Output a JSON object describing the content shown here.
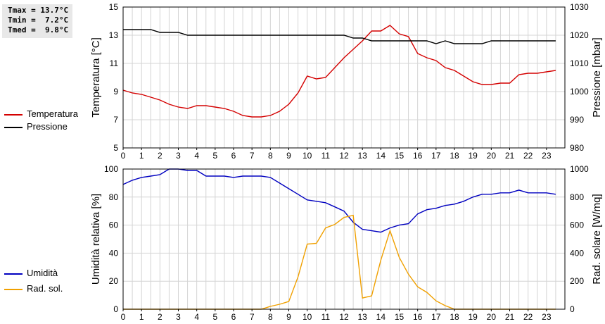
{
  "stats": {
    "lines": [
      "Tmax = 13.7°C",
      "Tmin =  7.2°C",
      "Tmed =  9.8°C"
    ]
  },
  "legend": {
    "top": [
      {
        "label": "Temperatura",
        "color": "#d40000"
      },
      {
        "label": "Pressione",
        "color": "#000000"
      }
    ],
    "bottom": [
      {
        "label": "Umidità",
        "color": "#0000c0"
      },
      {
        "label": "Rad. sol.",
        "color": "#f0a000"
      }
    ]
  },
  "chart_data": [
    {
      "type": "line",
      "x_ticks": [
        "0",
        "1",
        "2",
        "3",
        "4",
        "5",
        "6",
        "7",
        "8",
        "9",
        "10",
        "11",
        "12",
        "13",
        "14",
        "15",
        "16",
        "17",
        "18",
        "19",
        "20",
        "21",
        "22",
        "23"
      ],
      "xlim": [
        0,
        24
      ],
      "grid": true,
      "ylabel_left": "Temperatura [°C]",
      "ylabel_right": "Pressione [mbar]",
      "ylim_left": [
        5,
        15
      ],
      "ylim_right": [
        980,
        1030
      ],
      "yticks_left": [
        "5",
        "7",
        "9",
        "11",
        "13",
        "15"
      ],
      "yticks_right": [
        "980",
        "990",
        "1000",
        "1010",
        "1020",
        "1030"
      ],
      "series": [
        {
          "name": "Temperatura",
          "axis": "left",
          "color": "#d40000",
          "x": [
            0,
            0.5,
            1,
            1.5,
            2,
            2.5,
            3,
            3.5,
            4,
            4.5,
            5,
            5.5,
            6,
            6.5,
            7,
            7.5,
            8,
            8.5,
            9,
            9.5,
            10,
            10.5,
            11,
            11.5,
            12,
            12.5,
            13,
            13.5,
            14,
            14.5,
            15,
            15.5,
            16,
            16.5,
            17,
            17.5,
            18,
            18.5,
            19,
            19.5,
            20,
            20.5,
            21,
            21.5,
            22,
            22.5,
            23,
            23.5
          ],
          "y": [
            9.1,
            8.9,
            8.8,
            8.6,
            8.4,
            8.1,
            7.9,
            7.8,
            8.0,
            8.0,
            7.9,
            7.8,
            7.6,
            7.3,
            7.2,
            7.2,
            7.3,
            7.6,
            8.1,
            8.9,
            10.1,
            9.9,
            10.0,
            10.7,
            11.4,
            12.0,
            12.6,
            13.3,
            13.3,
            13.7,
            13.1,
            12.9,
            11.7,
            11.4,
            11.2,
            10.7,
            10.5,
            10.1,
            9.7,
            9.5,
            9.5,
            9.6,
            9.6,
            10.2,
            10.3,
            10.3,
            10.4,
            10.5
          ]
        },
        {
          "name": "Pressione",
          "axis": "right",
          "color": "#000000",
          "x": [
            0,
            0.5,
            1,
            1.5,
            2,
            2.5,
            3,
            3.5,
            4,
            4.5,
            5,
            5.5,
            6,
            6.5,
            7,
            7.5,
            8,
            8.5,
            9,
            9.5,
            10,
            10.5,
            11,
            11.5,
            12,
            12.5,
            13,
            13.5,
            14,
            14.5,
            15,
            15.5,
            16,
            16.5,
            17,
            17.5,
            18,
            18.5,
            19,
            19.5,
            20,
            20.5,
            21,
            21.5,
            22,
            22.5,
            23,
            23.5
          ],
          "y": [
            1022,
            1022,
            1022,
            1022,
            1021,
            1021,
            1021,
            1020,
            1020,
            1020,
            1020,
            1020,
            1020,
            1020,
            1020,
            1020,
            1020,
            1020,
            1020,
            1020,
            1020,
            1020,
            1020,
            1020,
            1020,
            1019,
            1019,
            1018,
            1018,
            1018,
            1018,
            1018,
            1018,
            1018,
            1017,
            1018,
            1017,
            1017,
            1017,
            1017,
            1018,
            1018,
            1018,
            1018,
            1018,
            1018,
            1018,
            1018
          ]
        }
      ]
    },
    {
      "type": "line",
      "x_ticks": [
        "0",
        "1",
        "2",
        "3",
        "4",
        "5",
        "6",
        "7",
        "8",
        "9",
        "10",
        "11",
        "12",
        "13",
        "14",
        "15",
        "16",
        "17",
        "18",
        "19",
        "20",
        "21",
        "22",
        "23"
      ],
      "xlim": [
        0,
        24
      ],
      "grid": true,
      "ylabel_left": "Umidità relativa [%]",
      "ylabel_right": "Rad. solare [W/mq]",
      "ylim_left": [
        0,
        100
      ],
      "ylim_right": [
        0,
        1000
      ],
      "yticks_left": [
        "0",
        "20",
        "40",
        "60",
        "80",
        "100"
      ],
      "yticks_right": [
        "0",
        "200",
        "400",
        "600",
        "800",
        "1000"
      ],
      "series": [
        {
          "name": "Umidità",
          "axis": "left",
          "color": "#0000c0",
          "x": [
            0,
            0.5,
            1,
            1.5,
            2,
            2.5,
            3,
            3.5,
            4,
            4.5,
            5,
            5.5,
            6,
            6.5,
            7,
            7.5,
            8,
            8.5,
            9,
            9.5,
            10,
            10.5,
            11,
            11.5,
            12,
            12.5,
            13,
            13.5,
            14,
            14.5,
            15,
            15.5,
            16,
            16.5,
            17,
            17.5,
            18,
            18.5,
            19,
            19.5,
            20,
            20.5,
            21,
            21.5,
            22,
            22.5,
            23,
            23.5
          ],
          "y": [
            89,
            92,
            94,
            95,
            96,
            100,
            100,
            99,
            99,
            95,
            95,
            95,
            94,
            95,
            95,
            95,
            94,
            90,
            86,
            82,
            78,
            77,
            76,
            73,
            70,
            62,
            57,
            56,
            55,
            58,
            60,
            61,
            68,
            71,
            72,
            74,
            75,
            77,
            80,
            82,
            82,
            83,
            83,
            85,
            83,
            83,
            83,
            82
          ]
        },
        {
          "name": "Rad. sol.",
          "axis": "right",
          "color": "#f0a000",
          "x": [
            0,
            0.5,
            1,
            1.5,
            2,
            2.5,
            3,
            3.5,
            4,
            4.5,
            5,
            5.5,
            6,
            6.5,
            7,
            7.5,
            8,
            8.5,
            9,
            9.5,
            10,
            10.5,
            11,
            11.5,
            12,
            12.5,
            13,
            13.5,
            14,
            14.5,
            15,
            15.5,
            16,
            16.5,
            17,
            17.5,
            18,
            18.5,
            19,
            19.5,
            20,
            20.5,
            21,
            21.5,
            22,
            22.5,
            23,
            23.5
          ],
          "y": [
            0,
            0,
            0,
            0,
            0,
            0,
            0,
            0,
            0,
            0,
            0,
            0,
            0,
            0,
            0,
            0,
            20,
            35,
            55,
            230,
            465,
            470,
            580,
            605,
            655,
            670,
            80,
            95,
            350,
            560,
            370,
            250,
            160,
            120,
            60,
            25,
            0,
            0,
            0,
            0,
            0,
            0,
            0,
            0,
            0,
            0,
            0,
            0
          ]
        }
      ]
    }
  ]
}
